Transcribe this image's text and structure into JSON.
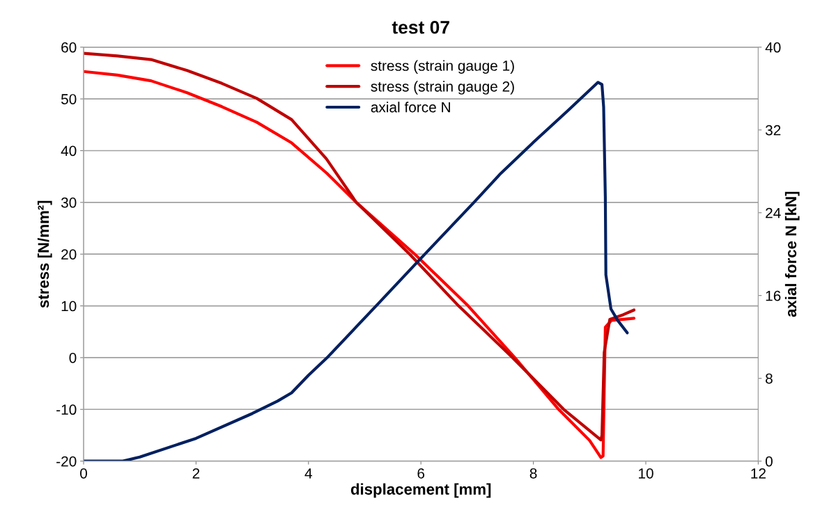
{
  "chart_data": {
    "type": "line",
    "title": "test 07",
    "xlabel": "displacement [mm]",
    "ylabel": "stress [N/mm²]",
    "y2label": "axial force N [kN]",
    "xlim": [
      0,
      12
    ],
    "xticks": [
      0,
      2,
      4,
      6,
      8,
      10,
      12
    ],
    "ylim": [
      -20,
      60
    ],
    "yticks": [
      -20,
      -10,
      0,
      10,
      20,
      30,
      40,
      50,
      60
    ],
    "y2lim": [
      0,
      40
    ],
    "y2ticks": [
      0,
      8,
      16,
      24,
      32,
      40
    ],
    "grid": "y",
    "legend": "top",
    "marker": "none",
    "line_style": "solid",
    "series": [
      {
        "name": "stress (strain gauge 1)",
        "color": "#ff0000",
        "x": [
          0,
          0.6,
          1.2,
          1.84,
          2.46,
          3.08,
          3.7,
          4.32,
          4.85,
          5.89,
          6.84,
          7.67,
          8.45,
          9.0,
          9.2,
          9.24,
          9.28,
          9.39,
          9.6,
          9.79
        ],
        "values": [
          55.3,
          54.6,
          53.5,
          51.2,
          48.5,
          45.5,
          41.5,
          35.7,
          30,
          20,
          10,
          0,
          -10,
          -16,
          -19.3,
          -19,
          5.9,
          7.2,
          7.4,
          7.6
        ]
      },
      {
        "name": "stress (strain gauge 2)",
        "color": "#c00000",
        "x": [
          0,
          0.6,
          1.2,
          1.84,
          2.46,
          3.08,
          3.7,
          4.32,
          4.85,
          5.8,
          6.67,
          7.63,
          8.54,
          9.2,
          9.22,
          9.26,
          9.36,
          9.6,
          9.79
        ],
        "values": [
          58.8,
          58.3,
          57.6,
          55.5,
          53,
          50.1,
          46,
          38.4,
          30,
          20,
          10,
          0,
          -10,
          -15.9,
          -15,
          1,
          7.4,
          8.3,
          9.2
        ]
      },
      {
        "name": "axial force N",
        "color": "#002060",
        "axis": "y2",
        "x": [
          0,
          0.7,
          1,
          2,
          3,
          3.45,
          3.7,
          4,
          4.35,
          5.22,
          5.93,
          6.96,
          7.42,
          8,
          8.6,
          9.15,
          9.22,
          9.25,
          9.28,
          9.29,
          9.38,
          9.5,
          9.67
        ],
        "values": [
          0,
          0,
          0.4,
          2.2,
          4.6,
          5.8,
          6.6,
          8.3,
          10.1,
          15.1,
          19.2,
          25.1,
          27.8,
          30.8,
          33.8,
          36.6,
          36.4,
          34.2,
          25.5,
          18,
          14.7,
          13.6,
          12.4
        ]
      }
    ]
  }
}
